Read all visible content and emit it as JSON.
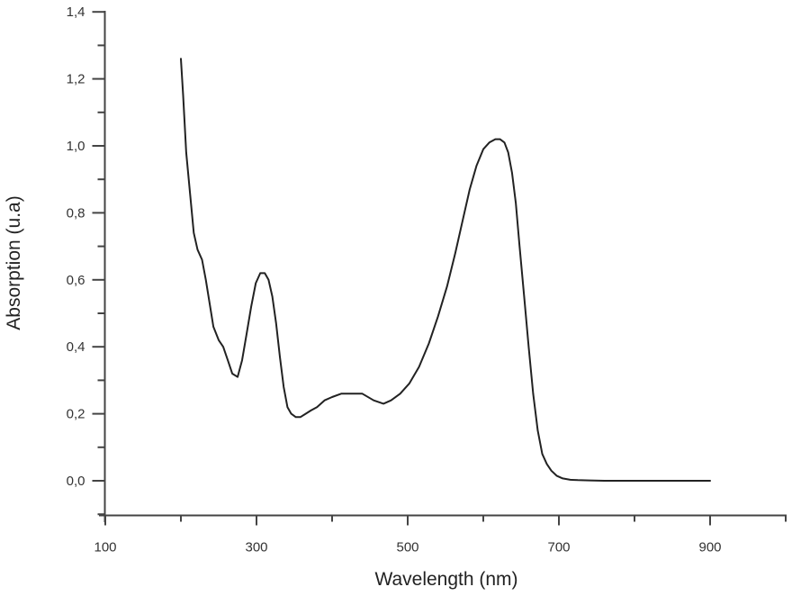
{
  "chart_data": {
    "type": "line",
    "title": "",
    "xlabel": "Wavelength (nm)",
    "ylabel": "Absorption (u.a)",
    "xlim": [
      100,
      1000
    ],
    "ylim": [
      -0.1,
      1.4
    ],
    "grid": false,
    "legend": null,
    "x_ticks": [
      100,
      300,
      500,
      700,
      900
    ],
    "x_tick_labels": [
      "100",
      "300",
      "500",
      "700",
      "900"
    ],
    "x_minor_ticks": [
      200,
      400,
      600,
      800,
      1000
    ],
    "y_ticks": [
      0.0,
      0.2,
      0.4,
      0.6,
      0.8,
      1.0,
      1.2,
      1.4
    ],
    "y_tick_labels": [
      "0,0",
      "0,2",
      "0,4",
      "0,6",
      "0,8",
      "1,0",
      "1,2",
      "1,4"
    ],
    "y_minor_ticks": [
      -0.1,
      0.1,
      0.3,
      0.5,
      0.7,
      0.9,
      1.1,
      1.3
    ],
    "series": [
      {
        "name": "Absorption",
        "color": "#222222",
        "x": [
          200,
          203,
          207,
          212,
          217,
          222,
          228,
          233,
          238,
          243,
          250,
          256,
          262,
          268,
          275,
          281,
          287,
          293,
          299,
          305,
          311,
          316,
          321,
          326,
          331,
          336,
          341,
          346,
          352,
          358,
          365,
          372,
          380,
          390,
          400,
          412,
          425,
          440,
          455,
          468,
          478,
          490,
          502,
          515,
          528,
          540,
          552,
          563,
          573,
          582,
          591,
          600,
          608,
          616,
          622,
          628,
          633,
          638,
          643,
          648,
          654,
          660,
          666,
          672,
          678,
          684,
          690,
          697,
          705,
          715,
          725,
          740,
          760,
          780,
          800,
          820,
          840,
          860,
          880,
          900
        ],
        "y": [
          1.26,
          1.15,
          0.98,
          0.86,
          0.74,
          0.69,
          0.66,
          0.6,
          0.53,
          0.46,
          0.42,
          0.4,
          0.36,
          0.32,
          0.31,
          0.36,
          0.44,
          0.52,
          0.59,
          0.62,
          0.62,
          0.6,
          0.55,
          0.47,
          0.37,
          0.28,
          0.22,
          0.2,
          0.19,
          0.19,
          0.2,
          0.21,
          0.22,
          0.24,
          0.25,
          0.26,
          0.26,
          0.26,
          0.24,
          0.23,
          0.24,
          0.26,
          0.29,
          0.34,
          0.41,
          0.49,
          0.58,
          0.68,
          0.78,
          0.87,
          0.94,
          0.99,
          1.01,
          1.02,
          1.02,
          1.01,
          0.98,
          0.92,
          0.83,
          0.7,
          0.55,
          0.4,
          0.26,
          0.15,
          0.08,
          0.05,
          0.03,
          0.015,
          0.007,
          0.003,
          0.002,
          0.001,
          0.0,
          0.0,
          0.0,
          0.0,
          0.0,
          0.0,
          0.0,
          0.0
        ]
      }
    ]
  }
}
